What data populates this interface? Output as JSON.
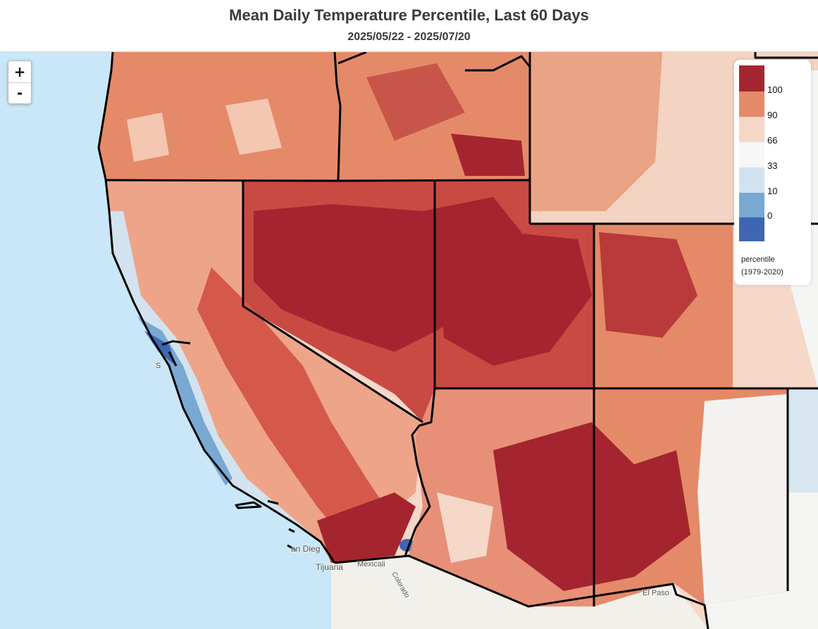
{
  "header": {
    "title": "Mean Daily Temperature Percentile, Last 60 Days",
    "date_range": "2025/05/22 - 2025/07/20"
  },
  "zoom": {
    "in_label": "+",
    "out_label": "-"
  },
  "legend": {
    "swatches": [
      {
        "color": "#a4252f"
      },
      {
        "color": "#e58a68"
      },
      {
        "color": "#f6d8c8"
      },
      {
        "color": "#f7f7f7"
      },
      {
        "color": "#d2e3ef"
      },
      {
        "color": "#78a9d3"
      },
      {
        "color": "#3f66b0"
      }
    ],
    "ticks": [
      "100",
      "90",
      "66",
      "33",
      "10",
      "0"
    ],
    "caption_line1": "percentile",
    "caption_line2": "(1979-2020)"
  },
  "places": [
    {
      "name": "San Diego",
      "shown": "an Dieg"
    },
    {
      "name": "Tijuana",
      "shown": "Tijuana"
    },
    {
      "name": "Mexicali",
      "shown": "Mexicali"
    },
    {
      "name": "Colorado",
      "shown": "Colorado"
    },
    {
      "name": "El Paso",
      "shown": "El Paso"
    },
    {
      "name": "San Francisco",
      "shown": "S"
    }
  ],
  "colors": {
    "ocean": "#c9e7f8",
    "land_base": "#f3f1ec",
    "pct_100": "#a4252f",
    "pct_90": "#e58a68",
    "pct_66": "#f6d8c8",
    "pct_33": "#f7f7f7",
    "pct_10": "#d2e3ef",
    "pct_0": "#78a9d3",
    "pct_min": "#3f66b0",
    "border": "#000000"
  }
}
